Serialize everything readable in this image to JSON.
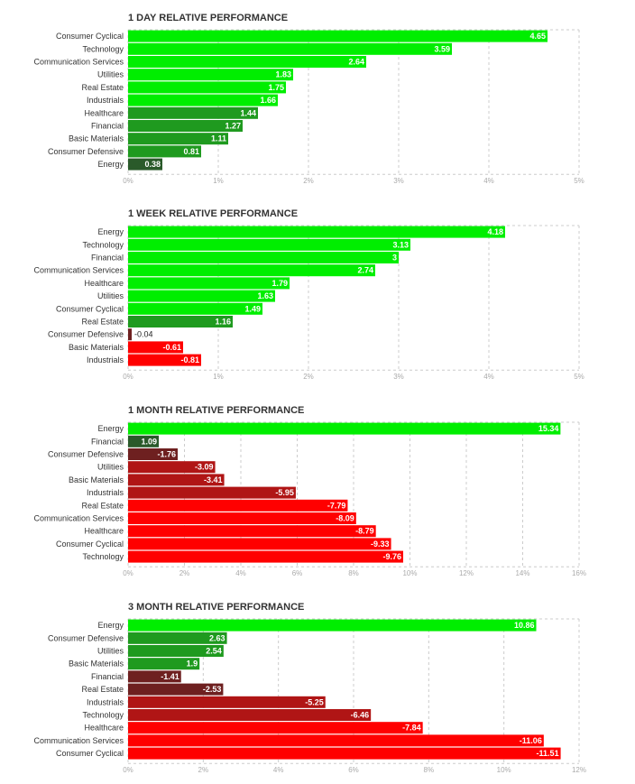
{
  "chart_data": [
    {
      "type": "bar",
      "title": "1 DAY RELATIVE PERFORMANCE",
      "categories": [
        "Consumer Cyclical",
        "Technology",
        "Communication Services",
        "Utilities",
        "Real Estate",
        "Industrials",
        "Healthcare",
        "Financial",
        "Basic Materials",
        "Consumer Defensive",
        "Energy"
      ],
      "values": [
        4.65,
        3.59,
        2.64,
        1.83,
        1.75,
        1.66,
        1.44,
        1.27,
        1.11,
        0.81,
        0.38
      ],
      "value_labels": [
        "4.65",
        "3.59",
        "2.64",
        "1.83",
        "1.75",
        "1.66",
        "1.44",
        "1.27",
        "1.11",
        "0.81",
        "0.38"
      ],
      "xlim": [
        0,
        5
      ],
      "ticks": [
        0,
        1,
        2,
        3,
        4,
        5
      ],
      "tick_labels": [
        "0%",
        "1%",
        "2%",
        "3%",
        "4%",
        "5%"
      ],
      "grid": true,
      "orientation": "horizontal"
    },
    {
      "type": "bar",
      "title": "1 WEEK RELATIVE PERFORMANCE",
      "categories": [
        "Energy",
        "Technology",
        "Financial",
        "Communication Services",
        "Healthcare",
        "Utilities",
        "Consumer Cyclical",
        "Real Estate",
        "Consumer Defensive",
        "Basic Materials",
        "Industrials"
      ],
      "values": [
        4.18,
        3.13,
        3,
        2.74,
        1.79,
        1.63,
        1.49,
        1.16,
        -0.04,
        -0.61,
        -0.81
      ],
      "value_labels": [
        "4.18",
        "3.13",
        "3",
        "2.74",
        "1.79",
        "1.63",
        "1.49",
        "1.16",
        "-0.04",
        "-0.61",
        "-0.81"
      ],
      "xlim": [
        0,
        5
      ],
      "ticks": [
        0,
        1,
        2,
        3,
        4,
        5
      ],
      "tick_labels": [
        "0%",
        "1%",
        "2%",
        "3%",
        "4%",
        "5%"
      ],
      "grid": true,
      "orientation": "horizontal"
    },
    {
      "type": "bar",
      "title": "1 MONTH RELATIVE PERFORMANCE",
      "categories": [
        "Energy",
        "Financial",
        "Consumer Defensive",
        "Utilities",
        "Basic Materials",
        "Industrials",
        "Real Estate",
        "Communication Services",
        "Healthcare",
        "Consumer Cyclical",
        "Technology"
      ],
      "values": [
        15.34,
        1.09,
        -1.76,
        -3.09,
        -3.41,
        -5.95,
        -7.79,
        -8.09,
        -8.79,
        -9.33,
        -9.76
      ],
      "value_labels": [
        "15.34",
        "1.09",
        "-1.76",
        "-3.09",
        "-3.41",
        "-5.95",
        "-7.79",
        "-8.09",
        "-8.79",
        "-9.33",
        "-9.76"
      ],
      "xlim": [
        0,
        16
      ],
      "ticks": [
        0,
        2,
        4,
        6,
        8,
        10,
        12,
        14,
        16
      ],
      "tick_labels": [
        "0%",
        "2%",
        "4%",
        "6%",
        "8%",
        "10%",
        "12%",
        "14%",
        "16%"
      ],
      "grid": true,
      "orientation": "horizontal"
    },
    {
      "type": "bar",
      "title": "3 MONTH RELATIVE PERFORMANCE",
      "categories": [
        "Energy",
        "Consumer Defensive",
        "Utilities",
        "Basic Materials",
        "Financial",
        "Real Estate",
        "Industrials",
        "Technology",
        "Healthcare",
        "Communication Services",
        "Consumer Cyclical"
      ],
      "values": [
        10.86,
        2.63,
        2.54,
        1.9,
        -1.41,
        -2.53,
        -5.25,
        -6.46,
        -7.84,
        -11.06,
        -11.51
      ],
      "value_labels": [
        "10.86",
        "2.63",
        "2.54",
        "1.9",
        "-1.41",
        "-2.53",
        "-5.25",
        "-6.46",
        "-7.84",
        "-11.06",
        "-11.51"
      ],
      "xlim": [
        0,
        12
      ],
      "ticks": [
        0,
        2,
        4,
        6,
        8,
        10,
        12
      ],
      "tick_labels": [
        "0%",
        "2%",
        "4%",
        "6%",
        "8%",
        "10%",
        "12%"
      ],
      "grid": true,
      "orientation": "horizontal"
    }
  ],
  "colors": {
    "positive_bright": "#00ee00",
    "positive_mid": "#1f9a1f",
    "positive_dark": "#2a5a2a",
    "negative_dark": "#6e2020",
    "negative_mid": "#b01515",
    "negative_bright": "#ff0000",
    "grid": "#cccccc",
    "tick_text": "#aaaaaa",
    "label_text": "#333333"
  }
}
